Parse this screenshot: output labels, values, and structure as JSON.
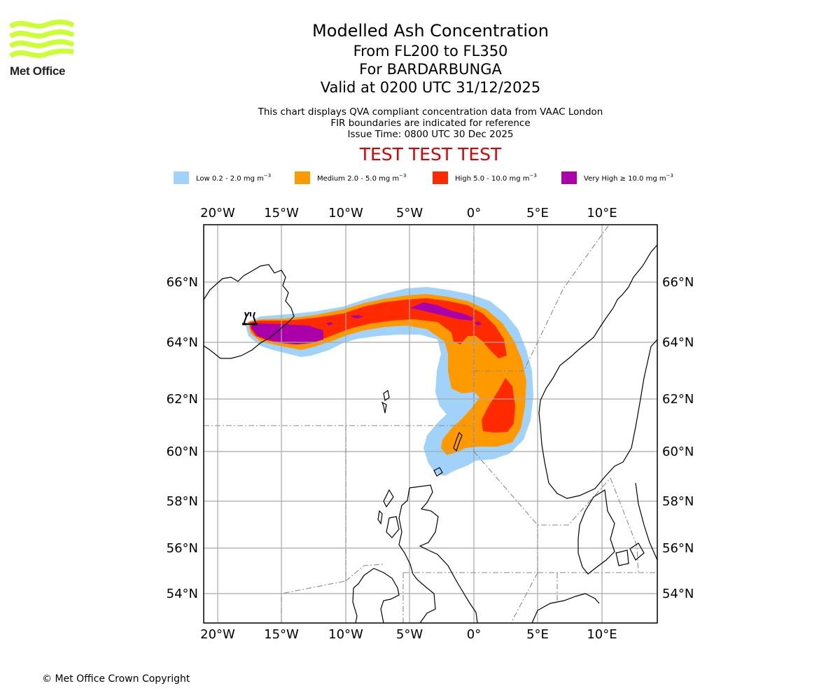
{
  "logo": {
    "text": "Met Office",
    "color": "#ccff33"
  },
  "title": {
    "main": "Modelled Ash Concentration",
    "levels": "From FL200 to FL350",
    "volcano": "For BARDARBUNGA",
    "valid": "Valid at 0200 UTC 31/12/2025"
  },
  "subtitle": {
    "line1": "This chart displays QVA compliant concentration data from VAAC London",
    "line2": "FIR boundaries are indicated for reference",
    "line3": "Issue Time: 0800 UTC 30 Dec 2025"
  },
  "test_banner": "TEST TEST TEST",
  "legend": [
    {
      "name": "Low",
      "label": "Low 0.2 - 2.0 mg m",
      "sup": "−3",
      "color": "#a0d2fa"
    },
    {
      "name": "Medium",
      "label": "Medium 2.0 - 5.0 mg m",
      "sup": "−3",
      "color": "#ff9900"
    },
    {
      "name": "High",
      "label": "High 5.0 - 10.0 mg m",
      "sup": "−3",
      "color": "#ff2a00"
    },
    {
      "name": "Very High",
      "label": "Very High  ≥  10.0 mg m",
      "sup": "−3",
      "color": "#aa00aa"
    }
  ],
  "axes": {
    "lon_ticks": [
      "20°W",
      "15°W",
      "10°W",
      "5°W",
      "0°",
      "5°E",
      "10°E"
    ],
    "lat_ticks": [
      "66°N",
      "64°N",
      "62°N",
      "60°N",
      "58°N",
      "56°N",
      "54°N"
    ]
  },
  "volcano_marker": {
    "name": "BARDARBUNGA",
    "icon": "volcano-icon"
  },
  "footer": "© Met Office Crown Copyright"
}
